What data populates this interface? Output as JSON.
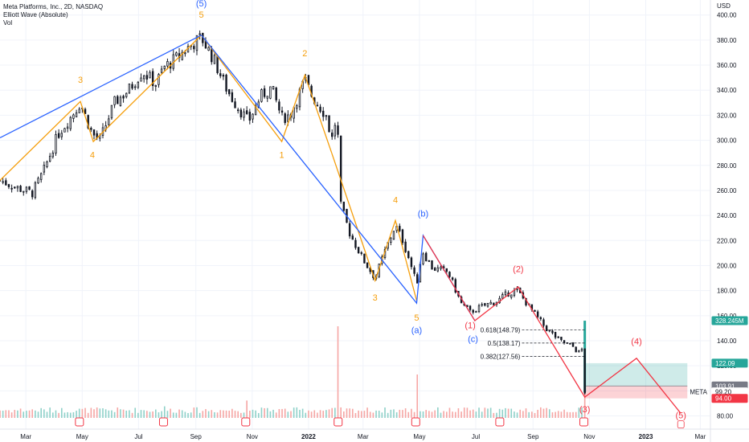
{
  "header": {
    "title": "Meta Platforms, Inc., 2D, NASDAQ",
    "indicator1": "Elliott Wave (Absolute)",
    "indicator2": "Vol"
  },
  "colors": {
    "up": "#26a69a",
    "down": "#ef5350",
    "vol_up": "#8fd1c9",
    "vol_down": "#f6a6a4",
    "wave_orange": "#f59e0b",
    "wave_blue": "#2962ff",
    "wave_red": "#f23645",
    "grid": "#f0f3fa"
  },
  "chart_data": {
    "type": "candlestick",
    "y_axis": {
      "unit_label": "USD",
      "ticks": [
        "400.00",
        "380.00",
        "360.00",
        "340.00",
        "320.00",
        "300.00",
        "280.00",
        "260.00",
        "240.00",
        "220.00",
        "200.00",
        "180.00",
        "160.00",
        "140.00",
        "120.00",
        "100.00",
        "80.00"
      ],
      "ylim": [
        72,
        412
      ]
    },
    "x_axis": {
      "ticks": [
        {
          "label": "Mar",
          "date": "2021-03-01"
        },
        {
          "label": "May",
          "date": "2021-05-01"
        },
        {
          "label": "Jul",
          "date": "2021-07-01"
        },
        {
          "label": "Sep",
          "date": "2021-09-01"
        },
        {
          "label": "Nov",
          "date": "2021-11-01"
        },
        {
          "label": "2022",
          "date": "2022-01-01"
        },
        {
          "label": "Mar",
          "date": "2022-03-01"
        },
        {
          "label": "May",
          "date": "2022-05-01"
        },
        {
          "label": "Jul",
          "date": "2022-07-01"
        },
        {
          "label": "Sep",
          "date": "2022-09-01"
        },
        {
          "label": "Nov",
          "date": "2022-11-01"
        },
        {
          "label": "2023",
          "date": "2023-01-01"
        },
        {
          "label": "Mar",
          "date": "2023-03-01"
        }
      ],
      "xlim": [
        "2021-02-01",
        "2023-03-12"
      ]
    },
    "price_close_path": [
      [
        "2021-02-01",
        268
      ],
      [
        "2021-02-20",
        262
      ],
      [
        "2021-03-08",
        258
      ],
      [
        "2021-03-20",
        275
      ],
      [
        "2021-04-05",
        305
      ],
      [
        "2021-04-20",
        320
      ],
      [
        "2021-04-29",
        330
      ],
      [
        "2021-05-12",
        305
      ],
      [
        "2021-05-20",
        300
      ],
      [
        "2021-06-05",
        330
      ],
      [
        "2021-06-20",
        340
      ],
      [
        "2021-07-05",
        355
      ],
      [
        "2021-07-20",
        345
      ],
      [
        "2021-07-28",
        358
      ],
      [
        "2021-08-10",
        365
      ],
      [
        "2021-08-25",
        375
      ],
      [
        "2021-09-07",
        382
      ],
      [
        "2021-09-20",
        365
      ],
      [
        "2021-10-05",
        340
      ],
      [
        "2021-10-15",
        328
      ],
      [
        "2021-10-28",
        315
      ],
      [
        "2021-11-10",
        335
      ],
      [
        "2021-11-22",
        342
      ],
      [
        "2021-12-03",
        318
      ],
      [
        "2021-12-12",
        320
      ],
      [
        "2021-12-28",
        348
      ],
      [
        "2022-01-05",
        335
      ],
      [
        "2022-01-20",
        320
      ],
      [
        "2022-01-26",
        300
      ],
      [
        "2022-02-01",
        322
      ],
      [
        "2022-02-04",
        250
      ],
      [
        "2022-02-15",
        225
      ],
      [
        "2022-03-01",
        205
      ],
      [
        "2022-03-14",
        190
      ],
      [
        "2022-03-25",
        212
      ],
      [
        "2022-04-05",
        232
      ],
      [
        "2022-04-12",
        222
      ],
      [
        "2022-04-20",
        205
      ],
      [
        "2022-04-28",
        185
      ],
      [
        "2022-05-04",
        212
      ],
      [
        "2022-05-15",
        198
      ],
      [
        "2022-06-01",
        195
      ],
      [
        "2022-06-15",
        170
      ],
      [
        "2022-06-25",
        163
      ],
      [
        "2022-07-10",
        168
      ],
      [
        "2022-07-25",
        172
      ],
      [
        "2022-08-05",
        178
      ],
      [
        "2022-08-15",
        180
      ],
      [
        "2022-08-30",
        165
      ],
      [
        "2022-09-15",
        150
      ],
      [
        "2022-09-30",
        140
      ],
      [
        "2022-10-15",
        135
      ],
      [
        "2022-10-20",
        130
      ],
      [
        "2022-10-25",
        134
      ],
      [
        "2022-10-27",
        99
      ]
    ],
    "candle_count": 200,
    "earnings_marks": [
      "2021-04-28",
      "2021-07-28",
      "2021-10-25",
      "2022-02-02",
      "2022-04-27",
      "2022-07-27",
      "2022-10-26"
    ],
    "volume_spikes": [
      [
        "2022-02-03",
        0.95
      ],
      [
        "2022-04-28",
        0.45
      ],
      [
        "2021-10-26",
        0.18
      ],
      [
        "2021-07-29",
        0.12
      ],
      [
        "2022-10-27",
        0.5
      ]
    ],
    "waves": [
      {
        "name": "orange_impulse_2021",
        "color": "orange",
        "points": [
          [
            "2021-02-01",
            268,
            ""
          ],
          [
            "2021-04-29",
            331,
            "3"
          ],
          [
            "2021-05-13",
            299,
            "4"
          ],
          [
            "2021-09-07",
            384,
            "5"
          ]
        ]
      },
      {
        "name": "blue_degree_2021",
        "color": "blue",
        "points": [
          [
            "2021-02-01",
            302,
            ""
          ],
          [
            "2021-09-07",
            384,
            "(5)"
          ]
        ]
      },
      {
        "name": "orange_abc_2021",
        "color": "orange",
        "points": [
          [
            "2021-09-07",
            384,
            ""
          ],
          [
            "2021-12-03",
            299,
            "1"
          ],
          [
            "2021-12-28",
            352,
            "2"
          ],
          [
            "2022-01-26",
            290,
            ""
          ]
        ]
      },
      {
        "name": "orange_impulse_2022",
        "color": "orange",
        "points": [
          [
            "2022-01-26",
            290,
            ""
          ],
          [
            "2022-03-14",
            188,
            "3"
          ],
          [
            "2022-04-05",
            236,
            "4"
          ],
          [
            "2022-04-28",
            172,
            "5"
          ]
        ]
      },
      {
        "name": "blue_abc_2022",
        "color": "blue",
        "points": [
          [
            "2021-09-07",
            384,
            ""
          ],
          [
            "2022-04-28",
            170,
            "(a)"
          ],
          [
            "2022-05-05",
            224,
            "(b)"
          ],
          [
            "2022-06-30",
            156,
            "(c)"
          ]
        ]
      },
      {
        "name": "red_impulse",
        "color": "red",
        "points": [
          [
            "2022-05-05",
            224,
            ""
          ],
          [
            "2022-06-30",
            156,
            "(1)"
          ],
          [
            "2022-08-16",
            183,
            "(2)"
          ],
          [
            "2022-10-27",
            95,
            "(3)"
          ],
          [
            "2022-12-22",
            126,
            "(4)"
          ],
          [
            "2023-02-08",
            82,
            "(5)"
          ]
        ]
      }
    ],
    "wave_labels": [
      {
        "text": "3",
        "date": "2021-04-29",
        "price": 346,
        "color": "orange"
      },
      {
        "text": "4",
        "date": "2021-05-12",
        "price": 286,
        "color": "orange"
      },
      {
        "text": "(5)",
        "date": "2021-09-07",
        "price": 407,
        "color": "blue"
      },
      {
        "text": "5",
        "date": "2021-09-07",
        "price": 398,
        "color": "orange"
      },
      {
        "text": "2",
        "date": "2021-12-28",
        "price": 367,
        "color": "orange"
      },
      {
        "text": "1",
        "date": "2021-12-03",
        "price": 286,
        "color": "orange"
      },
      {
        "text": "4",
        "date": "2022-04-05",
        "price": 250,
        "color": "orange"
      },
      {
        "text": "3",
        "date": "2022-03-14",
        "price": 172,
        "color": "orange"
      },
      {
        "text": "5",
        "date": "2022-04-28",
        "price": 156,
        "color": "orange"
      },
      {
        "text": "(a)",
        "date": "2022-04-28",
        "price": 146,
        "color": "blue"
      },
      {
        "text": "(b)",
        "date": "2022-05-05",
        "price": 239,
        "color": "blue"
      },
      {
        "text": "(1)",
        "date": "2022-06-25",
        "price": 150,
        "color": "red"
      },
      {
        "text": "(c)",
        "date": "2022-06-28",
        "price": 139,
        "color": "blue"
      },
      {
        "text": "(2)",
        "date": "2022-08-16",
        "price": 195,
        "color": "red"
      },
      {
        "text": "(3)",
        "date": "2022-10-27",
        "price": 83,
        "color": "red"
      },
      {
        "text": "(4)",
        "date": "2022-12-22",
        "price": 137,
        "color": "red"
      },
      {
        "text": "(5)",
        "date": "2023-02-08",
        "price": 78,
        "color": "red"
      }
    ],
    "fib_levels": [
      {
        "label": "0.618(148.79)",
        "price": 148.79
      },
      {
        "label": "0.5(138.17)",
        "price": 138.17
      },
      {
        "label": "0.382(127.56)",
        "price": 127.56
      }
    ],
    "fib_range": [
      "2022-08-20",
      "2022-10-27"
    ],
    "position_box": {
      "start": "2022-10-27",
      "end": "2023-02-15",
      "entry": 103.91,
      "target": 122.09,
      "stop": 94.0
    },
    "price_tags": [
      {
        "label": "328.245M",
        "price": 156,
        "bg": "#26a69a",
        "fg": "#ffffff"
      },
      {
        "label": "122.09",
        "price": 122.09,
        "bg": "#26a69a",
        "fg": "#ffffff"
      },
      {
        "label": "103.91",
        "price": 103.91,
        "bg": "#787b86",
        "fg": "#ffffff"
      },
      {
        "label": "99.20",
        "price": 99.2,
        "bg": "#ffffff",
        "fg": "#131722"
      },
      {
        "label": "94.00",
        "price": 94.0,
        "bg": "#f23645",
        "fg": "#ffffff"
      }
    ],
    "symbol_label": "META"
  }
}
